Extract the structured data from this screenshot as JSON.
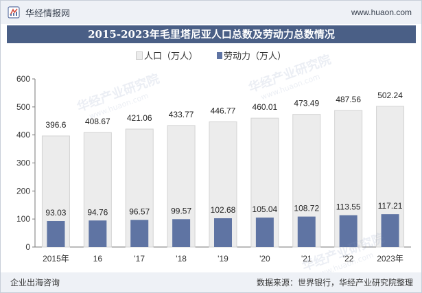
{
  "header": {
    "brand": "华经情报网",
    "site": "www.huaon.com"
  },
  "watermark": {
    "text": "华经产业研究院",
    "site": "www.huaon.com"
  },
  "chart_data": {
    "type": "bar",
    "title": "2015-2023年毛里塔尼亚人口总数及劳动力总数情况",
    "categories": [
      "2015年",
      "16",
      "'17",
      "'18",
      "'19",
      "'20",
      "'21",
      "'22",
      "2023年"
    ],
    "series": [
      {
        "name": "人口（万人）",
        "values": [
          396.6,
          408.67,
          421.06,
          433.77,
          446.77,
          460.01,
          473.49,
          487.56,
          502.24
        ],
        "color": "#ececec"
      },
      {
        "name": "劳动力（万人）",
        "values": [
          93.03,
          94.76,
          96.57,
          99.57,
          102.68,
          105.04,
          108.72,
          113.55,
          117.21
        ],
        "color": "#5f74a3"
      }
    ],
    "ylim": [
      0,
      600
    ],
    "yticks": [
      0,
      100,
      200,
      300,
      400,
      500,
      600
    ],
    "xlabel": "",
    "ylabel": "",
    "legend": "top-center",
    "grid": false
  },
  "footer": {
    "left": "企业出海咨询",
    "right": "数据来源：世界银行，华经产业研究院整理"
  },
  "colors": {
    "title_bg": "#4a5f86",
    "bar_population": "#ececec",
    "bar_labor": "#5f74a3",
    "bar_outline": "#d3d3d3"
  }
}
